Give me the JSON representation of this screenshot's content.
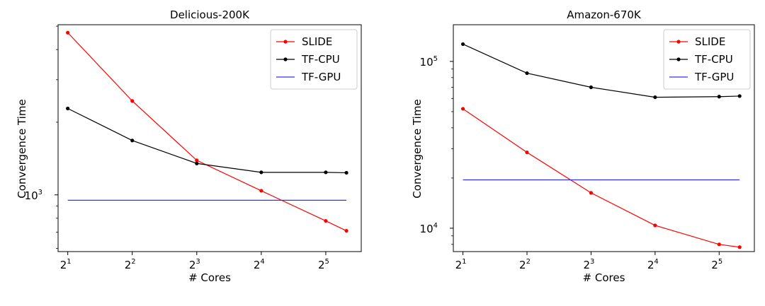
{
  "chart_data": [
    {
      "type": "line",
      "title": "Delicious-200K",
      "xlabel": "# Cores",
      "ylabel": "Convergence Time",
      "xscale": "log2",
      "yscale": "log10",
      "xlim": [
        0.85,
        5.55
      ],
      "ylim_log10": [
        2.765,
        3.705
      ],
      "xticks": [
        {
          "exp": 1,
          "base": "2",
          "sup": "1"
        },
        {
          "exp": 2,
          "base": "2",
          "sup": "2"
        },
        {
          "exp": 3,
          "base": "2",
          "sup": "3"
        },
        {
          "exp": 4,
          "base": "2",
          "sup": "4"
        },
        {
          "exp": 5,
          "base": "2",
          "sup": "5"
        }
      ],
      "yticks": [
        {
          "log10": 3,
          "base": "10",
          "sup": "3"
        }
      ],
      "legend_loc": "top-right",
      "series": [
        {
          "name": "SLIDE",
          "color": "#ff0000",
          "markers": true,
          "x_exp": [
            1,
            2,
            3,
            4,
            5,
            5.32
          ],
          "values": [
            4700,
            2450,
            1390,
            1040,
            780,
            710
          ]
        },
        {
          "name": "TF-CPU",
          "color": "#000000",
          "markers": true,
          "x_exp": [
            1,
            2,
            3,
            4,
            5,
            5.32
          ],
          "values": [
            2280,
            1680,
            1350,
            1240,
            1240,
            1235
          ]
        },
        {
          "name": "TF-GPU",
          "color": "#3333ee",
          "markers": false,
          "x_exp": [
            1,
            5.32
          ],
          "values": [
            950,
            950
          ]
        }
      ]
    },
    {
      "type": "line",
      "title": "Amazon-670K",
      "xlabel": "# Cores",
      "ylabel": "Convergence Time",
      "xscale": "log2",
      "yscale": "log10",
      "xlim": [
        0.85,
        5.55
      ],
      "ylim_log10": [
        3.86,
        5.22
      ],
      "xticks": [
        {
          "exp": 1,
          "base": "2",
          "sup": "1"
        },
        {
          "exp": 2,
          "base": "2",
          "sup": "2"
        },
        {
          "exp": 3,
          "base": "2",
          "sup": "3"
        },
        {
          "exp": 4,
          "base": "2",
          "sup": "4"
        },
        {
          "exp": 5,
          "base": "2",
          "sup": "5"
        }
      ],
      "yticks": [
        {
          "log10": 4,
          "base": "10",
          "sup": "4"
        },
        {
          "log10": 5,
          "base": "10",
          "sup": "5"
        }
      ],
      "legend_loc": "top-right",
      "series": [
        {
          "name": "SLIDE",
          "color": "#ff0000",
          "markers": true,
          "x_exp": [
            1,
            2,
            3,
            4,
            5,
            5.32
          ],
          "values": [
            52000,
            28500,
            16300,
            10400,
            8000,
            7700
          ]
        },
        {
          "name": "TF-CPU",
          "color": "#000000",
          "markers": true,
          "x_exp": [
            1,
            2,
            3,
            4,
            5,
            5.32
          ],
          "values": [
            127000,
            85000,
            70000,
            61000,
            61500,
            62000
          ]
        },
        {
          "name": "TF-GPU",
          "color": "#3333ee",
          "markers": false,
          "x_exp": [
            1,
            5.32
          ],
          "values": [
            19500,
            19500
          ]
        }
      ]
    }
  ]
}
